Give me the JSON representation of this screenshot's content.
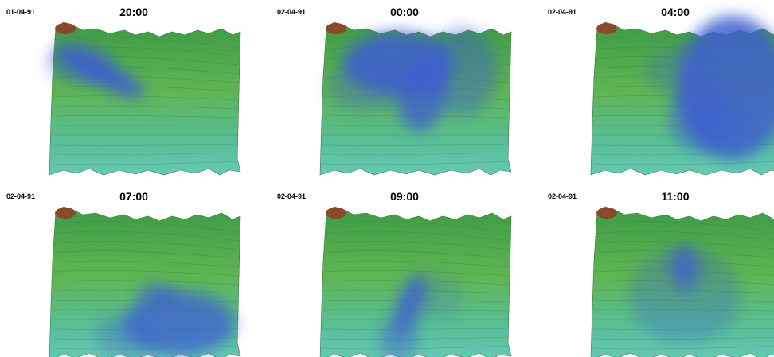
{
  "panels": [
    {
      "date": "01-04-91",
      "time": "20:00"
    },
    {
      "date": "02-04-91",
      "time": "00:00"
    },
    {
      "date": "02-04-91",
      "time": "04:00"
    },
    {
      "date": "02-04-91",
      "time": "07:00"
    },
    {
      "date": "02-04-91",
      "time": "09:00"
    },
    {
      "date": "02-04-91",
      "time": "11:00"
    }
  ]
}
